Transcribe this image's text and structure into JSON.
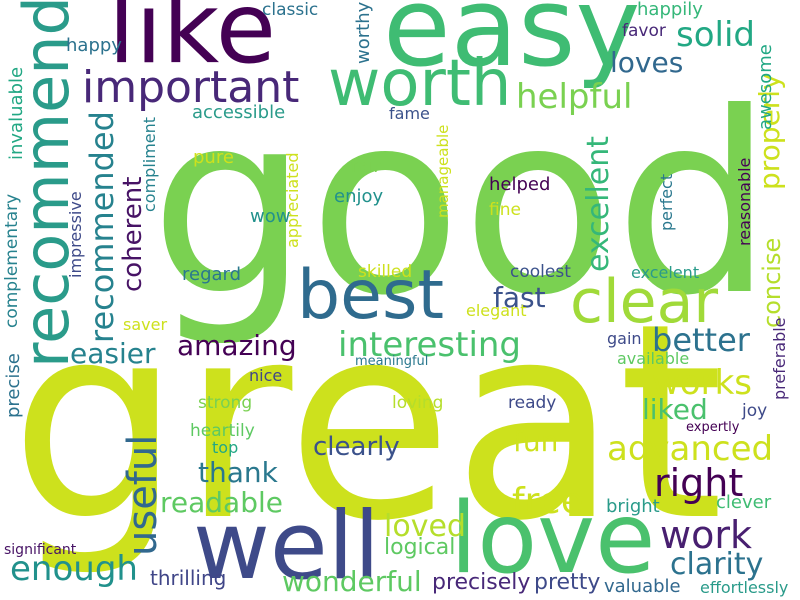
{
  "words": [
    {
      "text": "good",
      "color": "#7ad151",
      "rotation": "horizontal"
    },
    {
      "text": "great",
      "color": "#cde11d",
      "rotation": "horizontal"
    },
    {
      "text": "easy",
      "color": "#3fbc73",
      "rotation": "horizontal"
    },
    {
      "text": "like",
      "color": "#440154",
      "rotation": "horizontal"
    },
    {
      "text": "recommend",
      "color": "#2a9b8a",
      "rotation": "vertical"
    },
    {
      "text": "worth",
      "color": "#3fbc73",
      "rotation": "horizontal"
    },
    {
      "text": "important",
      "color": "#482878",
      "rotation": "horizontal"
    },
    {
      "text": "solid",
      "color": "#22a884",
      "rotation": "horizontal"
    },
    {
      "text": "loves",
      "color": "#31688e",
      "rotation": "horizontal"
    },
    {
      "text": "helpful",
      "color": "#7ad151",
      "rotation": "horizontal"
    },
    {
      "text": "best",
      "color": "#2f6b8e",
      "rotation": "horizontal"
    },
    {
      "text": "clear",
      "color": "#a0da39",
      "rotation": "horizontal"
    },
    {
      "text": "well",
      "color": "#3e4a89",
      "rotation": "horizontal"
    },
    {
      "text": "love",
      "color": "#4ac16d",
      "rotation": "horizontal"
    },
    {
      "text": "recommended",
      "color": "#26828e",
      "rotation": "vertical"
    },
    {
      "text": "coherent",
      "color": "#471365",
      "rotation": "vertical"
    },
    {
      "text": "interesting",
      "color": "#4ac16d",
      "rotation": "horizontal"
    },
    {
      "text": "amazing",
      "color": "#440154",
      "rotation": "horizontal"
    },
    {
      "text": "easier",
      "color": "#26828e",
      "rotation": "horizontal"
    },
    {
      "text": "fast",
      "color": "#3b528b",
      "rotation": "horizontal"
    },
    {
      "text": "better",
      "color": "#2c728e",
      "rotation": "horizontal"
    },
    {
      "text": "works",
      "color": "#cde11d",
      "rotation": "horizontal"
    },
    {
      "text": "excellent",
      "color": "#35b779",
      "rotation": "vertical"
    },
    {
      "text": "concise",
      "color": "#b5de2b",
      "rotation": "vertical"
    },
    {
      "text": "properly",
      "color": "#cde11d",
      "rotation": "vertical"
    },
    {
      "text": "liked",
      "color": "#4ac16d",
      "rotation": "horizontal"
    },
    {
      "text": "advanced",
      "color": "#cde11d",
      "rotation": "horizontal"
    },
    {
      "text": "right",
      "color": "#440154",
      "rotation": "horizontal"
    },
    {
      "text": "useful",
      "color": "#31688e",
      "rotation": "vertical"
    },
    {
      "text": "thank",
      "color": "#2a788e",
      "rotation": "horizontal"
    },
    {
      "text": "readable",
      "color": "#5ec962",
      "rotation": "horizontal"
    },
    {
      "text": "clearly",
      "color": "#3b528b",
      "rotation": "horizontal"
    },
    {
      "text": "fun",
      "color": "#cde11d",
      "rotation": "horizontal"
    },
    {
      "text": "free",
      "color": "#cde11d",
      "rotation": "horizontal"
    },
    {
      "text": "work",
      "color": "#481f70",
      "rotation": "horizontal"
    },
    {
      "text": "clarity",
      "color": "#2c728e",
      "rotation": "horizontal"
    },
    {
      "text": "loved",
      "color": "#b5de2b",
      "rotation": "horizontal"
    },
    {
      "text": "logical",
      "color": "#5ec962",
      "rotation": "horizontal"
    },
    {
      "text": "enough",
      "color": "#21918c",
      "rotation": "horizontal"
    },
    {
      "text": "wonderful",
      "color": "#5ec962",
      "rotation": "horizontal"
    },
    {
      "text": "precisely",
      "color": "#482878",
      "rotation": "horizontal"
    },
    {
      "text": "pretty",
      "color": "#3e4a89",
      "rotation": "horizontal"
    },
    {
      "text": "valuable",
      "color": "#31688e",
      "rotation": "horizontal"
    },
    {
      "text": "effortlessly",
      "color": "#2a9b8a",
      "rotation": "horizontal"
    },
    {
      "text": "thrilling",
      "color": "#404688",
      "rotation": "horizontal"
    },
    {
      "text": "significant",
      "color": "#471365",
      "rotation": "horizontal"
    },
    {
      "text": "bright",
      "color": "#2a9b8a",
      "rotation": "horizontal"
    },
    {
      "text": "clever",
      "color": "#3fbc73",
      "rotation": "horizontal"
    },
    {
      "text": "classic",
      "color": "#2c728e",
      "rotation": "horizontal"
    },
    {
      "text": "worthy",
      "color": "#2c728e",
      "rotation": "vertical"
    },
    {
      "text": "happily",
      "color": "#35b779",
      "rotation": "horizontal"
    },
    {
      "text": "favor",
      "color": "#482878",
      "rotation": "horizontal"
    },
    {
      "text": "happy",
      "color": "#2c728e",
      "rotation": "horizontal"
    },
    {
      "text": "accessible",
      "color": "#2a9b8a",
      "rotation": "horizontal"
    },
    {
      "text": "fame",
      "color": "#3b528b",
      "rotation": "horizontal"
    },
    {
      "text": "awesome",
      "color": "#22a884",
      "rotation": "vertical"
    },
    {
      "text": "invaluable",
      "color": "#22a884",
      "rotation": "vertical"
    },
    {
      "text": "compliment",
      "color": "#26828e",
      "rotation": "vertical"
    },
    {
      "text": "pure",
      "color": "#cde11d",
      "rotation": "horizontal"
    },
    {
      "text": "appreciated",
      "color": "#cde11d",
      "rotation": "vertical"
    },
    {
      "text": "fair",
      "color": "#7ad151",
      "rotation": "horizontal"
    },
    {
      "text": "enjoy",
      "color": "#21918c",
      "rotation": "horizontal"
    },
    {
      "text": "manageable",
      "color": "#cde11d",
      "rotation": "vertical"
    },
    {
      "text": "helped",
      "color": "#440154",
      "rotation": "horizontal"
    },
    {
      "text": "fine",
      "color": "#cde11d",
      "rotation": "horizontal"
    },
    {
      "text": "perfect",
      "color": "#2a788e",
      "rotation": "vertical"
    },
    {
      "text": "reasonable",
      "color": "#440154",
      "rotation": "vertical"
    },
    {
      "text": "complementary",
      "color": "#26828e",
      "rotation": "vertical"
    },
    {
      "text": "impressive",
      "color": "#3e4a89",
      "rotation": "vertical"
    },
    {
      "text": "wow",
      "color": "#21918c",
      "rotation": "horizontal"
    },
    {
      "text": "regard",
      "color": "#2a788e",
      "rotation": "horizontal"
    },
    {
      "text": "skilled",
      "color": "#cde11d",
      "rotation": "horizontal"
    },
    {
      "text": "coolest",
      "color": "#3b528b",
      "rotation": "horizontal"
    },
    {
      "text": "excelent",
      "color": "#2a9b8a",
      "rotation": "horizontal"
    },
    {
      "text": "saver",
      "color": "#cde11d",
      "rotation": "horizontal"
    },
    {
      "text": "elegant",
      "color": "#cde11d",
      "rotation": "horizontal"
    },
    {
      "text": "gain",
      "color": "#3e4a89",
      "rotation": "horizontal"
    },
    {
      "text": "available",
      "color": "#5ec962",
      "rotation": "horizontal"
    },
    {
      "text": "preferable",
      "color": "#482878",
      "rotation": "vertical"
    },
    {
      "text": "precise",
      "color": "#2c728e",
      "rotation": "vertical"
    },
    {
      "text": "nice",
      "color": "#404688",
      "rotation": "horizontal"
    },
    {
      "text": "meaningful",
      "color": "#2a788e",
      "rotation": "horizontal"
    },
    {
      "text": "strong",
      "color": "#7ad151",
      "rotation": "horizontal"
    },
    {
      "text": "loving",
      "color": "#b5de2b",
      "rotation": "horizontal"
    },
    {
      "text": "ready",
      "color": "#3e4a89",
      "rotation": "horizontal"
    },
    {
      "text": "joy",
      "color": "#3e4a89",
      "rotation": "horizontal"
    },
    {
      "text": "expertly",
      "color": "#440154",
      "rotation": "horizontal"
    },
    {
      "text": "heartily",
      "color": "#5ec962",
      "rotation": "horizontal"
    },
    {
      "text": "top",
      "color": "#22a884",
      "rotation": "horizontal"
    }
  ]
}
